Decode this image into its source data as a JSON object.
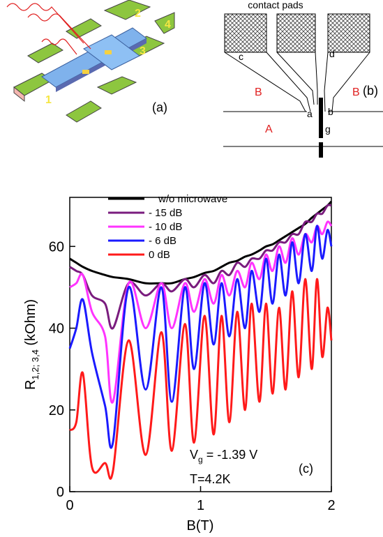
{
  "panel_a": {
    "label": "(a)",
    "contacts": [
      "1",
      "2",
      "3",
      "4"
    ]
  },
  "panel_b": {
    "label": "(b)",
    "title": "contact pads",
    "pad_c": "c",
    "pad_d": "d",
    "region_b_left": "B",
    "region_b_right": "B",
    "gap_a": "a",
    "gap_b": "b",
    "gate": "g",
    "region_a": "A"
  },
  "chart_data": {
    "type": "line",
    "xlabel": "B(T)",
    "ylabel": {
      "main": "R",
      "sub": "1,2; 3,4",
      "rest": " (kOhm)"
    },
    "annotations": {
      "gate_voltage": {
        "symbol": "V",
        "sub": "g",
        "text": " = -1.39 V"
      },
      "temperature": "T=4.2K",
      "panel_label": "(c)"
    },
    "xlim": [
      0,
      2
    ],
    "xticks": [
      0,
      1,
      2
    ],
    "ylim": [
      0,
      72
    ],
    "yticks": [
      0,
      20,
      40,
      60
    ],
    "grid": false,
    "legend": "upper-left",
    "x": [
      0,
      0.05,
      0.1,
      0.17,
      0.27,
      0.33,
      0.45,
      0.58,
      0.7,
      0.78,
      0.88,
      0.95,
      1.03,
      1.1,
      1.16,
      1.22,
      1.28,
      1.34,
      1.39,
      1.45,
      1.5,
      1.55,
      1.6,
      1.65,
      1.7,
      1.75,
      1.8,
      1.85,
      1.89,
      1.93,
      1.97,
      2.0
    ],
    "series": [
      {
        "name": "w/o microwave",
        "color": "#000000",
        "values": [
          57,
          56,
          55,
          54,
          53,
          52.5,
          52,
          51,
          51,
          51,
          52,
          52.5,
          53.5,
          54,
          55,
          56,
          56.5,
          57.5,
          58,
          59,
          60,
          60.5,
          61.5,
          62.5,
          63.5,
          64.5,
          65.5,
          67,
          68,
          69,
          70,
          71
        ]
      },
      {
        "name": "- 15 dB",
        "color": "#7a1c7e",
        "values": [
          55,
          54,
          53,
          48,
          46,
          40,
          51,
          48,
          51,
          49,
          52,
          50,
          53,
          51,
          54,
          53,
          56,
          55,
          57,
          57,
          59,
          59,
          61,
          61,
          63,
          63,
          66,
          66,
          68,
          68,
          70,
          70
        ]
      },
      {
        "name": "- 10 dB",
        "color": "#ff33ff",
        "values": [
          50,
          51,
          53,
          44,
          38,
          22,
          51,
          40,
          51,
          40,
          51,
          44,
          52,
          46,
          53,
          48,
          54,
          50,
          56,
          52,
          58,
          54,
          60,
          56,
          62,
          58,
          63,
          61,
          65,
          63,
          66,
          65
        ]
      },
      {
        "name": "- 6 dB",
        "color": "#1a1aff",
        "values": [
          35,
          40,
          47,
          34,
          21,
          12,
          50,
          25,
          50,
          22,
          50,
          30,
          51,
          36,
          51,
          38,
          52,
          40,
          54,
          44,
          57,
          46,
          58,
          48,
          61,
          51,
          63,
          54,
          65,
          57,
          64,
          60
        ]
      },
      {
        "name": "0 dB",
        "color": "#ff1a1a",
        "values": [
          15,
          17,
          29,
          6,
          7,
          5,
          37,
          9,
          39,
          10,
          41,
          12,
          43,
          14,
          43,
          17,
          44,
          20,
          46,
          22,
          46,
          24,
          45,
          25,
          49,
          28,
          52,
          30,
          52,
          33,
          45,
          37
        ]
      }
    ]
  }
}
